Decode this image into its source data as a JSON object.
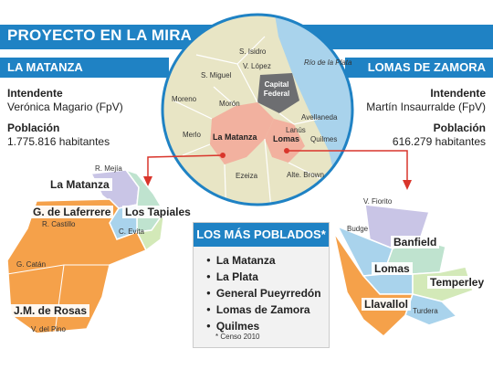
{
  "header": {
    "title": "PROYECTO EN LA MIRA"
  },
  "la_matanza": {
    "section_title": "LA MATANZA",
    "intendente_label": "Intendente",
    "intendente_name": "Verónica Magario (FpV)",
    "poblacion_label": "Población",
    "poblacion_value": "1.775.816 habitantes"
  },
  "lomas": {
    "section_title": "LOMAS DE ZAMORA",
    "intendente_label": "Intendente",
    "intendente_name": "Martín Insaurralde (FpV)",
    "poblacion_label": "Población",
    "poblacion_value": "616.279 habitantes"
  },
  "circle_map": {
    "labels": {
      "s_isidro": "S. Isidro",
      "v_lopez": "V. López",
      "rio": "Río de la Plata",
      "s_miguel": "S. Miguel",
      "capital": "Capital Federal",
      "moreno": "Moreno",
      "moron": "Morón",
      "avellaneda": "Avellaneda",
      "lanus": "Lanús",
      "merlo": "Merlo",
      "la_matanza": "La Matanza",
      "lomas": "Lomas",
      "quilmes": "Quilmes",
      "ezeiza": "Ezeiza",
      "alte_brown": "Alte. Brown"
    }
  },
  "matanza_map": {
    "labels": {
      "r_mejia": "R. Mejía",
      "la_matanza": "La Matanza",
      "laferrere": "G. de Laferrere",
      "tapiales": "Los Tapiales",
      "r_castillo": "R. Castillo",
      "c_evita": "C. Evita",
      "g_catan": "G. Catán",
      "jm_rosas": "J.M. de Rosas",
      "v_del_pino": "V. del Pino"
    }
  },
  "lomas_map": {
    "labels": {
      "v_fiorito": "V. Fiorito",
      "budge": "Budge",
      "banfield": "Banfield",
      "lomas": "Lomas",
      "temperley": "Temperley",
      "llavallol": "Llavallol",
      "turdera": "Turdera"
    }
  },
  "poblados": {
    "title": "LOS MÁS POBLADOS*",
    "items": [
      "La Matanza",
      "La Plata",
      "General Pueyrredón",
      "Lomas de Zamora",
      "Quilmes"
    ],
    "note": "* Censo 2010"
  },
  "colors": {
    "blue": "#1f82c4",
    "orange": "#f5a14a",
    "salmon": "#f2b19f",
    "lavender": "#c9c5e6",
    "sky": "#a9d3ec",
    "mint": "#bfe3cf",
    "pale_green": "#d3e9b8",
    "grey": "#6d6e71",
    "beige": "#e8e5c5",
    "arrow": "#d9352b"
  }
}
